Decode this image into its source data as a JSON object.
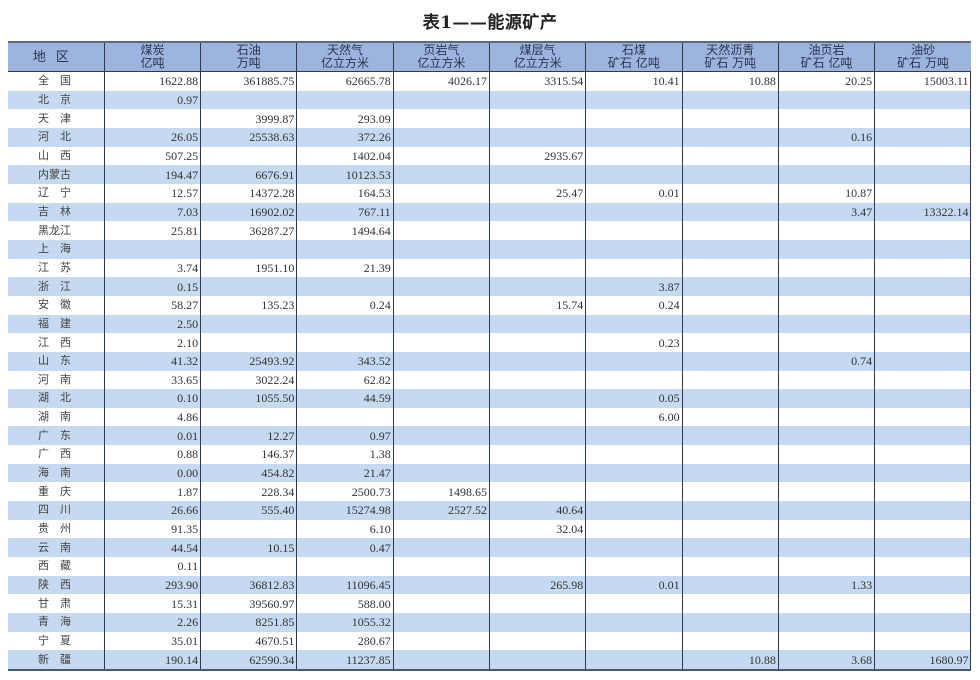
{
  "title": "表1——能源矿产",
  "colors": {
    "header_bg": "#9db4de",
    "stripe": "#c5d9f1",
    "border": "#2e3a50"
  },
  "table": {
    "headers": [
      [
        "地区",
        ""
      ],
      [
        "煤炭",
        "亿吨"
      ],
      [
        "石油",
        "万吨"
      ],
      [
        "天然气",
        "亿立方米"
      ],
      [
        "页岩气",
        "亿立方米"
      ],
      [
        "煤层气",
        "亿立方米"
      ],
      [
        "石煤",
        "矿石 亿吨"
      ],
      [
        "天然沥青",
        "矿石 万吨"
      ],
      [
        "油页岩",
        "矿石 亿吨"
      ],
      [
        "油砂",
        "矿石 万吨"
      ]
    ],
    "rows": [
      [
        "全　国",
        "1622.88",
        "361885.75",
        "62665.78",
        "4026.17",
        "3315.54",
        "10.41",
        "10.88",
        "20.25",
        "15003.11"
      ],
      [
        "北　京",
        "0.97",
        "",
        "",
        "",
        "",
        "",
        "",
        "",
        ""
      ],
      [
        "天　津",
        "",
        "3999.87",
        "293.09",
        "",
        "",
        "",
        "",
        "",
        ""
      ],
      [
        "河　北",
        "26.05",
        "25538.63",
        "372.26",
        "",
        "",
        "",
        "",
        "0.16",
        ""
      ],
      [
        "山　西",
        "507.25",
        "",
        "1402.04",
        "",
        "2935.67",
        "",
        "",
        "",
        ""
      ],
      [
        "内蒙古",
        "194.47",
        "6676.91",
        "10123.53",
        "",
        "",
        "",
        "",
        "",
        ""
      ],
      [
        "辽　宁",
        "12.57",
        "14372.28",
        "164.53",
        "",
        "25.47",
        "0.01",
        "",
        "10.87",
        ""
      ],
      [
        "吉　林",
        "7.03",
        "16902.02",
        "767.11",
        "",
        "",
        "",
        "",
        "3.47",
        "13322.14"
      ],
      [
        "黑龙江",
        "25.81",
        "36287.27",
        "1494.64",
        "",
        "",
        "",
        "",
        "",
        ""
      ],
      [
        "上　海",
        "",
        "",
        "",
        "",
        "",
        "",
        "",
        "",
        ""
      ],
      [
        "江　苏",
        "3.74",
        "1951.10",
        "21.39",
        "",
        "",
        "",
        "",
        "",
        ""
      ],
      [
        "浙　江",
        "0.15",
        "",
        "",
        "",
        "",
        "3.87",
        "",
        "",
        ""
      ],
      [
        "安　徽",
        "58.27",
        "135.23",
        "0.24",
        "",
        "15.74",
        "0.24",
        "",
        "",
        ""
      ],
      [
        "福　建",
        "2.50",
        "",
        "",
        "",
        "",
        "",
        "",
        "",
        ""
      ],
      [
        "江　西",
        "2.10",
        "",
        "",
        "",
        "",
        "0.23",
        "",
        "",
        ""
      ],
      [
        "山　东",
        "41.32",
        "25493.92",
        "343.52",
        "",
        "",
        "",
        "",
        "0.74",
        ""
      ],
      [
        "河　南",
        "33.65",
        "3022.24",
        "62.82",
        "",
        "",
        "",
        "",
        "",
        ""
      ],
      [
        "湖　北",
        "0.10",
        "1055.50",
        "44.59",
        "",
        "",
        "0.05",
        "",
        "",
        ""
      ],
      [
        "湖　南",
        "4.86",
        "",
        "",
        "",
        "",
        "6.00",
        "",
        "",
        ""
      ],
      [
        "广　东",
        "0.01",
        "12.27",
        "0.97",
        "",
        "",
        "",
        "",
        "",
        ""
      ],
      [
        "广　西",
        "0.88",
        "146.37",
        "1.38",
        "",
        "",
        "",
        "",
        "",
        ""
      ],
      [
        "海　南",
        "0.00",
        "454.82",
        "21.47",
        "",
        "",
        "",
        "",
        "",
        ""
      ],
      [
        "重　庆",
        "1.87",
        "228.34",
        "2500.73",
        "1498.65",
        "",
        "",
        "",
        "",
        ""
      ],
      [
        "四　川",
        "26.66",
        "555.40",
        "15274.98",
        "2527.52",
        "40.64",
        "",
        "",
        "",
        ""
      ],
      [
        "贵　州",
        "91.35",
        "",
        "6.10",
        "",
        "32.04",
        "",
        "",
        "",
        ""
      ],
      [
        "云　南",
        "44.54",
        "10.15",
        "0.47",
        "",
        "",
        "",
        "",
        "",
        ""
      ],
      [
        "西　藏",
        "0.11",
        "",
        "",
        "",
        "",
        "",
        "",
        "",
        ""
      ],
      [
        "陕　西",
        "293.90",
        "36812.83",
        "11096.45",
        "",
        "265.98",
        "0.01",
        "",
        "1.33",
        ""
      ],
      [
        "甘　肃",
        "15.31",
        "39560.97",
        "588.00",
        "",
        "",
        "",
        "",
        "",
        ""
      ],
      [
        "青　海",
        "2.26",
        "8251.85",
        "1055.32",
        "",
        "",
        "",
        "",
        "",
        ""
      ],
      [
        "宁　夏",
        "35.01",
        "4670.51",
        "280.67",
        "",
        "",
        "",
        "",
        "",
        ""
      ],
      [
        "新　疆",
        "190.14",
        "62590.34",
        "11237.85",
        "",
        "",
        "",
        "10.88",
        "3.68",
        "1680.97"
      ]
    ]
  }
}
